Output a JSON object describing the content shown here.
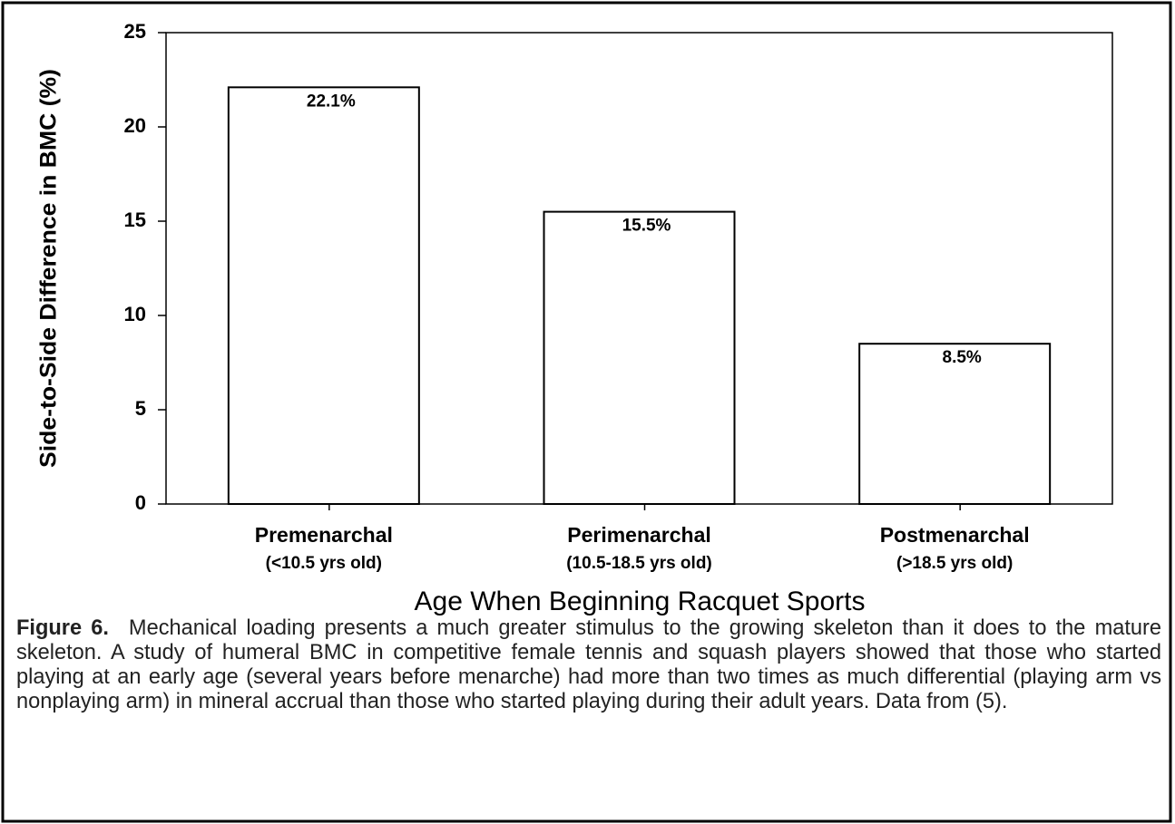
{
  "chart_data": {
    "type": "bar",
    "categories": [
      "Premenarchal",
      "Perimenarchal",
      "Postmenarchal"
    ],
    "category_subtitles": [
      "(<10.5 yrs old)",
      "(10.5-18.5 yrs old)",
      "(>18.5 yrs old)"
    ],
    "values": [
      22.1,
      15.5,
      8.5
    ],
    "value_labels": [
      "22.1%",
      "15.5%",
      "8.5%"
    ],
    "color": "#ffffff",
    "ylim": [
      0,
      25
    ],
    "yticks": [
      0,
      5,
      10,
      15,
      20,
      25
    ],
    "y_label": "Side-to-Side Difference in BMC (%)",
    "x_label": "Age When Beginning Racquet Sports",
    "grid": false
  },
  "caption": {
    "label": "Figure 6.",
    "text": "Mechanical loading presents a much greater stimulus to the growing skeleton than it does to the mature skeleton. A study of humeral BMC in competitive female tennis and squash players showed that those who started playing at an early age (several years before menarche) had more than two times as much differential (playing arm vs nonplaying arm) in mineral accrual than those who started playing during their adult years. Data from (5)."
  }
}
